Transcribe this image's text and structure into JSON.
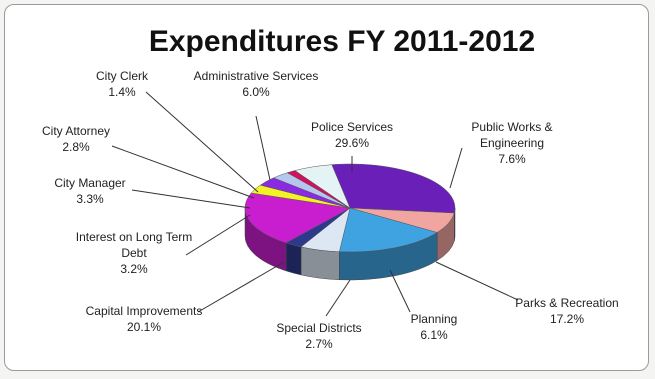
{
  "chart_data": {
    "type": "pie",
    "title": "Expenditures FY 2011-2012",
    "slices": [
      {
        "name": "Police Services",
        "label_lines": [
          "Police Services"
        ],
        "value_text": "29.6%",
        "value": 29.6,
        "color": "#6a1fb8"
      },
      {
        "name": "Public Works & Engineering",
        "label_lines": [
          "Public Works &",
          "Engineering"
        ],
        "value_text": "7.6%",
        "value": 7.6,
        "color": "#f0a5a0"
      },
      {
        "name": "Parks & Recreation",
        "label_lines": [
          "Parks & Recreation"
        ],
        "value_text": "17.2%",
        "value": 17.2,
        "color": "#3fa3e2"
      },
      {
        "name": "Planning",
        "label_lines": [
          "Planning"
        ],
        "value_text": "6.1%",
        "value": 6.1,
        "color": "#dde7f3"
      },
      {
        "name": "Special Districts",
        "label_lines": [
          "Special Districts"
        ],
        "value_text": "2.7%",
        "value": 2.7,
        "color": "#2d3a8c"
      },
      {
        "name": "Capital Improvements",
        "label_lines": [
          "Capital Improvements"
        ],
        "value_text": "20.1%",
        "value": 20.1,
        "color": "#c81ed0"
      },
      {
        "name": "Interest on Long Term Debt",
        "label_lines": [
          "Interest on Long Term",
          "Debt"
        ],
        "value_text": "3.2%",
        "value": 3.2,
        "color": "#f2f224"
      },
      {
        "name": "City Manager",
        "label_lines": [
          "City Manager"
        ],
        "value_text": "3.3%",
        "value": 3.3,
        "color": "#8a2be2"
      },
      {
        "name": "City Attorney",
        "label_lines": [
          "City Attorney"
        ],
        "value_text": "2.8%",
        "value": 2.8,
        "color": "#b6c6ee"
      },
      {
        "name": "City Clerk",
        "label_lines": [
          "City Clerk"
        ],
        "value_text": "1.4%",
        "value": 1.4,
        "color": "#d0115f"
      },
      {
        "name": "Administrative Services",
        "label_lines": [
          "Administrative Services"
        ],
        "value_text": "6.0%",
        "value": 6.0,
        "color": "#e4f4f4"
      }
    ]
  }
}
